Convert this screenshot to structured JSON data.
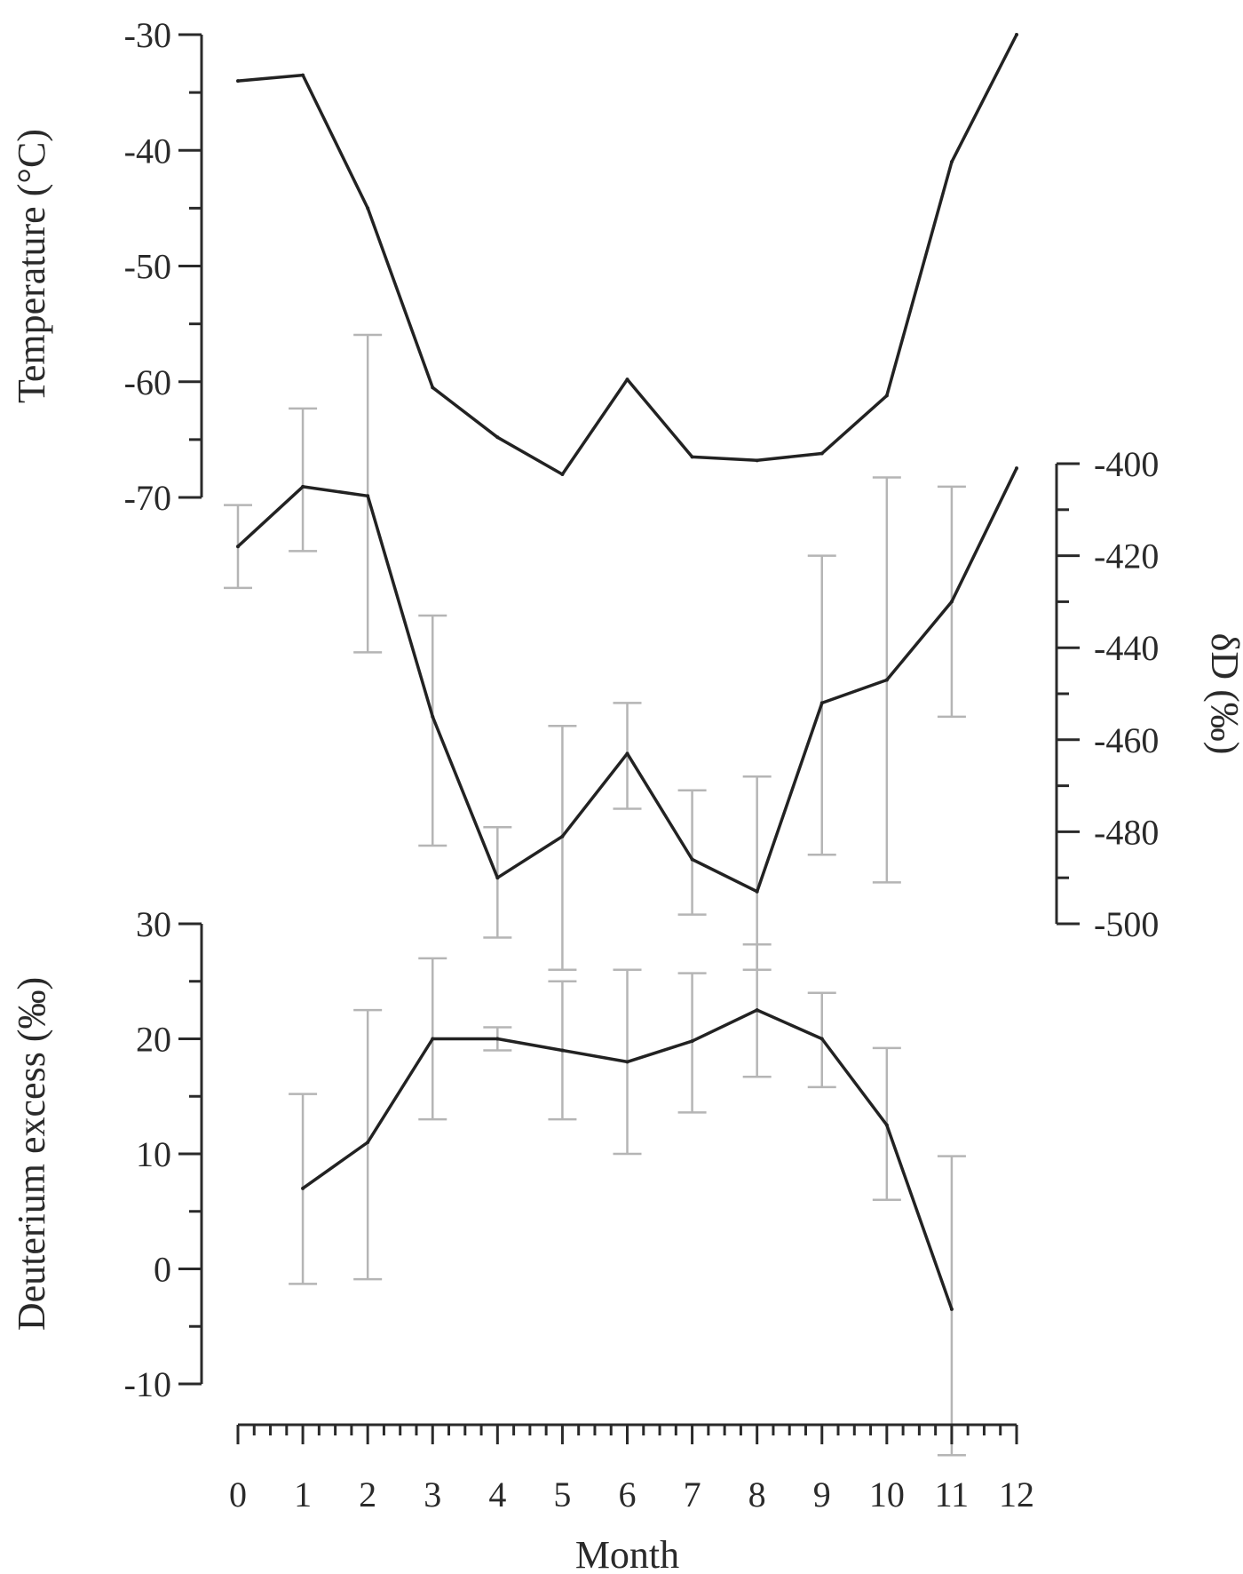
{
  "chart_data": {
    "type": "line",
    "x_axis": {
      "label": "Month",
      "range": [
        0,
        12
      ],
      "ticks": [
        0,
        1,
        2,
        3,
        4,
        5,
        6,
        7,
        8,
        9,
        10,
        11,
        12
      ],
      "tick_labels": [
        "0",
        "1",
        "2",
        "3",
        "4",
        "5",
        "6",
        "7",
        "8",
        "9",
        "10",
        "11",
        "12"
      ]
    },
    "panels": [
      {
        "id": "temperature",
        "ylabel": "Temperature (°C)",
        "y_axis_side": "left",
        "ylim": [
          -70,
          -30
        ],
        "yticks": [
          -30,
          -40,
          -50,
          -60,
          -70
        ],
        "ytick_labels": [
          "-30",
          "-40",
          "-50",
          "-60",
          "-70"
        ],
        "series": [
          {
            "x": [
              0,
              1,
              2,
              3,
              4,
              5,
              6,
              7,
              8,
              9,
              10,
              11,
              12
            ],
            "y": [
              -34.0,
              -33.5,
              -45.0,
              -60.5,
              -64.8,
              -68.0,
              -59.8,
              -66.5,
              -66.8,
              -66.2,
              -61.2,
              -41.0,
              -30.0
            ]
          }
        ]
      },
      {
        "id": "deltaD",
        "ylabel": "δD (‰)",
        "y_axis_side": "right",
        "ylim": [
          -500,
          -400
        ],
        "yticks": [
          -400,
          -420,
          -440,
          -460,
          -480,
          -500
        ],
        "ytick_labels": [
          "-400",
          "-420",
          "-440",
          "-460",
          "-480",
          "-500"
        ],
        "series": [
          {
            "x": [
              0,
              1,
              2,
              3,
              4,
              5,
              6,
              7,
              8,
              9,
              10,
              11,
              12
            ],
            "y": [
              -418,
              -405,
              -407,
              -455,
              -490,
              -481,
              -463,
              -486,
              -493,
              -452,
              -447,
              -430,
              -401
            ],
            "err_low": [
              -427,
              -419,
              -441,
              -483,
              -503,
              -510,
              -475,
              -498,
              -510,
              -485,
              -491,
              -455,
              null
            ],
            "err_high": [
              -409,
              -388,
              -372,
              -433,
              -479,
              -457,
              -452,
              -471,
              -468,
              -420,
              -403,
              -405,
              null
            ]
          }
        ]
      },
      {
        "id": "deuterium_excess",
        "ylabel": "Deuterium excess (‰)",
        "y_axis_side": "left",
        "ylim": [
          -10,
          30
        ],
        "yticks": [
          30,
          20,
          10,
          0,
          -10
        ],
        "ytick_labels": [
          "30",
          "20",
          "10",
          "0",
          "-10"
        ],
        "series": [
          {
            "x": [
              1,
              2,
              3,
              4,
              5,
              6,
              7,
              8,
              9,
              10,
              11
            ],
            "y": [
              7,
              11,
              20,
              20,
              19,
              18,
              19.8,
              22.5,
              20,
              12.5,
              -3.5
            ],
            "err_low": [
              -1.3,
              -0.9,
              13,
              19,
              13,
              10,
              13.6,
              16.7,
              15.8,
              6,
              -16.2
            ],
            "err_high": [
              15.2,
              22.5,
              27,
              21,
              25,
              26,
              25.7,
              28.2,
              24,
              19.2,
              9.8
            ]
          }
        ]
      }
    ],
    "colors": {
      "line": "#222222",
      "error_bars": "#b5b5b5",
      "axes": "#2a2a2a"
    },
    "grid": false,
    "legend": "none"
  }
}
